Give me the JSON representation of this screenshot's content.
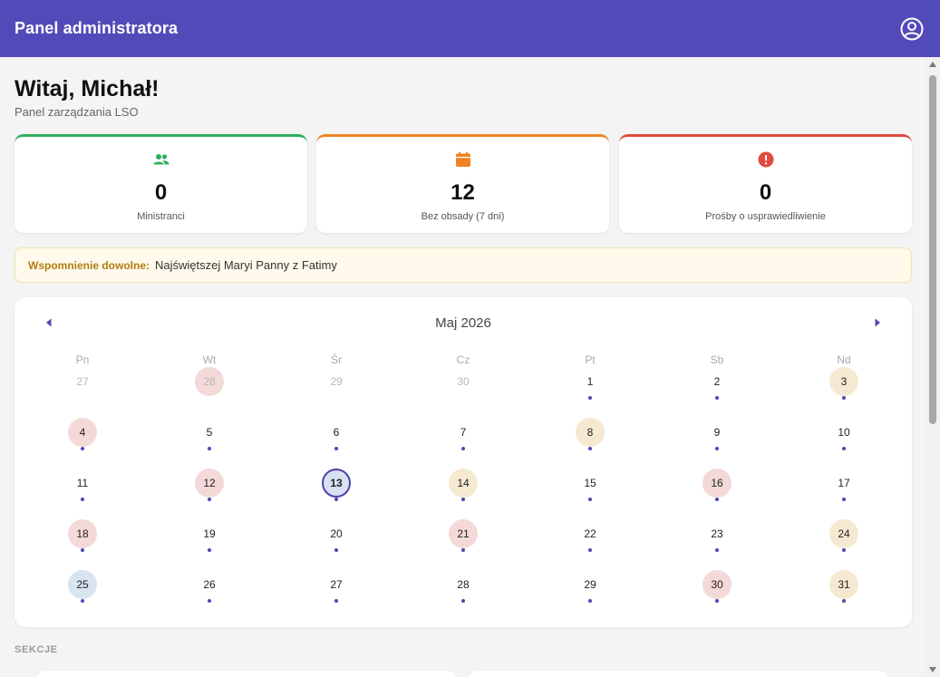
{
  "header": {
    "title": "Panel administratora",
    "account_icon": "account-circle-icon"
  },
  "greeting": {
    "title": "Witaj, Michał!",
    "subtitle": "Panel zarządzania LSO"
  },
  "stats": [
    {
      "value": "0",
      "label": "Ministranci",
      "color": "#2fae5c",
      "icon": "people-icon"
    },
    {
      "value": "12",
      "label": "Bez obsady (7 dni)",
      "color": "#ef8323",
      "icon": "calendar-icon"
    },
    {
      "value": "0",
      "label": "Prośby o usprawiedliwienie",
      "color": "#e04b3d",
      "icon": "alert-icon"
    }
  ],
  "memorial": {
    "label": "Wspomnienie dowolne:",
    "text": "Najświętszej Maryi Panny z Fatimy"
  },
  "calendar": {
    "month_label": "Maj 2026",
    "weekdays": [
      "Pn",
      "Wt",
      "Śr",
      "Cz",
      "Pt",
      "Sb",
      "Nd"
    ],
    "weeks": [
      [
        {
          "d": "27",
          "muted": true
        },
        {
          "d": "28",
          "muted": true,
          "color": "red"
        },
        {
          "d": "29",
          "muted": true
        },
        {
          "d": "30",
          "muted": true
        },
        {
          "d": "1",
          "dot": true
        },
        {
          "d": "2",
          "dot": true
        },
        {
          "d": "3",
          "dot": true,
          "color": "yellow"
        }
      ],
      [
        {
          "d": "4",
          "dot": true,
          "color": "red"
        },
        {
          "d": "5",
          "dot": true
        },
        {
          "d": "6",
          "dot": true
        },
        {
          "d": "7",
          "dot": true
        },
        {
          "d": "8",
          "dot": true,
          "color": "yellow"
        },
        {
          "d": "9",
          "dot": true
        },
        {
          "d": "10",
          "dot": true
        }
      ],
      [
        {
          "d": "11",
          "dot": true
        },
        {
          "d": "12",
          "dot": true,
          "color": "red"
        },
        {
          "d": "13",
          "dot": true,
          "today": true
        },
        {
          "d": "14",
          "dot": true,
          "color": "yellow"
        },
        {
          "d": "15",
          "dot": true
        },
        {
          "d": "16",
          "dot": true,
          "color": "red"
        },
        {
          "d": "17",
          "dot": true
        }
      ],
      [
        {
          "d": "18",
          "dot": true,
          "color": "red"
        },
        {
          "d": "19",
          "dot": true
        },
        {
          "d": "20",
          "dot": true
        },
        {
          "d": "21",
          "dot": true,
          "color": "red"
        },
        {
          "d": "22",
          "dot": true
        },
        {
          "d": "23",
          "dot": true
        },
        {
          "d": "24",
          "dot": true,
          "color": "yellow"
        }
      ],
      [
        {
          "d": "25",
          "dot": true,
          "color": "blue"
        },
        {
          "d": "26",
          "dot": true
        },
        {
          "d": "27",
          "dot": true
        },
        {
          "d": "28",
          "dot": true
        },
        {
          "d": "29",
          "dot": true
        },
        {
          "d": "30",
          "dot": true,
          "color": "red"
        },
        {
          "d": "31",
          "dot": true,
          "color": "yellow"
        }
      ]
    ]
  },
  "sections": {
    "label": "SEKCJE"
  }
}
